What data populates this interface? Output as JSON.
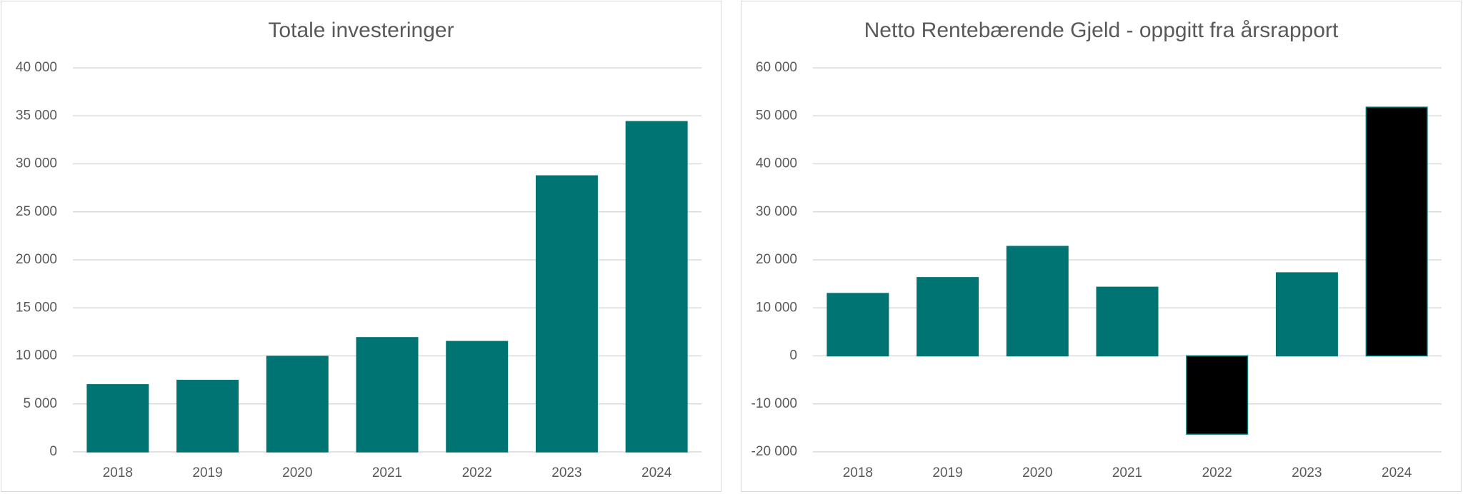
{
  "chart_data": [
    {
      "type": "bar",
      "title": "Totale investeringer",
      "categories": [
        "2018",
        "2019",
        "2020",
        "2021",
        "2022",
        "2023",
        "2024"
      ],
      "values": [
        7000,
        7450,
        9950,
        11900,
        11500,
        28750,
        34400
      ],
      "ylim": [
        0,
        40000
      ],
      "yticks": [
        0,
        5000,
        10000,
        15000,
        20000,
        25000,
        30000,
        35000,
        40000
      ],
      "ytick_labels": [
        "0",
        "5 000",
        "10 000",
        "15 000",
        "20 000",
        "25 000",
        "30 000",
        "35 000",
        "40 000"
      ],
      "xlabel": "",
      "ylabel": "",
      "grid": true,
      "legend": "none",
      "colors": {
        "bar": "#007373",
        "bar_border": "#007373"
      }
    },
    {
      "type": "bar",
      "title": "Netto Rentebærende Gjeld - oppgitt fra årsrapport",
      "categories": [
        "2018",
        "2019",
        "2020",
        "2021",
        "2022",
        "2023",
        "2024"
      ],
      "values": [
        13000,
        16300,
        22800,
        14300,
        -16300,
        17300,
        51800
      ],
      "ylim": [
        -20000,
        60000
      ],
      "yticks": [
        -20000,
        -10000,
        0,
        10000,
        20000,
        30000,
        40000,
        50000,
        60000
      ],
      "ytick_labels": [
        "-20 000",
        "-10 000",
        "0",
        "10 000",
        "20 000",
        "30 000",
        "40 000",
        "50 000",
        "60 000"
      ],
      "xlabel": "",
      "ylabel": "",
      "grid": true,
      "legend": "none",
      "colors": {
        "bar": "#007373",
        "bar_border": "#007373",
        "highlight": "#000000"
      },
      "highlighted_categories": [
        "2022",
        "2024"
      ]
    }
  ]
}
